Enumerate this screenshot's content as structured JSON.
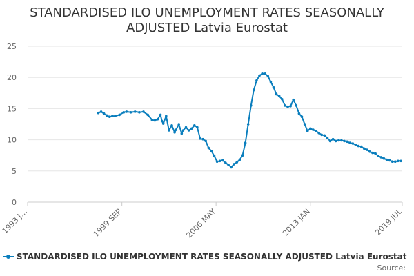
{
  "chart_data": {
    "type": "line",
    "title_lines": [
      "STANDARDISED ILO UNEMPLOYMENT RATES SEASONALLY",
      "ADJUSTED Latvia Eurostat"
    ],
    "xlabel": "",
    "ylabel": "",
    "ylim": [
      0,
      25
    ],
    "y_ticks": [
      0,
      5,
      10,
      15,
      20,
      25
    ],
    "x_range": [
      1993.0,
      2019.5
    ],
    "x_ticks": [
      {
        "x": 1993.0,
        "label": "1993 J…"
      },
      {
        "x": 1999.67,
        "label": "1999 SEP"
      },
      {
        "x": 2006.33,
        "label": "2006 MAY"
      },
      {
        "x": 2013.0,
        "label": "2013 JAN"
      },
      {
        "x": 2019.5,
        "label": "2019 JUL"
      }
    ],
    "grid": true,
    "series": [
      {
        "name": "STANDARDISED ILO UNEMPLOYMENT RATES SEASONALLY ADJUSTED Latvia Eurostat",
        "color": "#0a7ebd",
        "x": [
          1998.0,
          1998.2,
          1998.4,
          1998.6,
          1998.8,
          1999.0,
          1999.2,
          1999.5,
          1999.8,
          2000.0,
          2000.3,
          2000.6,
          2000.9,
          2001.2,
          2001.5,
          2001.8,
          2002.0,
          2002.2,
          2002.4,
          2002.5,
          2002.6,
          2002.8,
          2003.0,
          2003.2,
          2003.4,
          2003.5,
          2003.7,
          2003.9,
          2004.0,
          2004.2,
          2004.4,
          2004.6,
          2004.8,
          2005.0,
          2005.2,
          2005.4,
          2005.6,
          2005.8,
          2006.0,
          2006.2,
          2006.4,
          2006.6,
          2006.8,
          2007.0,
          2007.2,
          2007.4,
          2007.6,
          2007.8,
          2008.0,
          2008.2,
          2008.4,
          2008.6,
          2008.8,
          2009.0,
          2009.2,
          2009.4,
          2009.6,
          2009.8,
          2010.0,
          2010.2,
          2010.4,
          2010.6,
          2010.8,
          2011.0,
          2011.2,
          2011.4,
          2011.6,
          2011.8,
          2012.0,
          2012.2,
          2012.4,
          2012.6,
          2012.8,
          2013.0,
          2013.2,
          2013.4,
          2013.6,
          2013.8,
          2014.0,
          2014.2,
          2014.4,
          2014.6,
          2014.8,
          2015.0,
          2015.2,
          2015.4,
          2015.6,
          2015.8,
          2016.0,
          2016.2,
          2016.4,
          2016.6,
          2016.8,
          2017.0,
          2017.2,
          2017.4,
          2017.6,
          2017.8,
          2018.0,
          2018.2,
          2018.4,
          2018.6,
          2018.8,
          2019.0,
          2019.2,
          2019.4
        ],
        "values": [
          14.3,
          14.5,
          14.2,
          13.9,
          13.7,
          13.8,
          13.8,
          14.0,
          14.4,
          14.5,
          14.4,
          14.5,
          14.4,
          14.5,
          14.0,
          13.2,
          13.1,
          13.3,
          14.0,
          13.0,
          12.6,
          13.8,
          11.5,
          12.3,
          11.2,
          11.6,
          12.5,
          11.0,
          11.5,
          12.0,
          11.5,
          11.8,
          12.3,
          12.0,
          10.2,
          10.1,
          9.8,
          8.7,
          8.2,
          7.4,
          6.5,
          6.6,
          6.7,
          6.3,
          6.0,
          5.6,
          6.1,
          6.4,
          6.8,
          7.5,
          9.5,
          12.5,
          15.5,
          18.0,
          19.5,
          20.3,
          20.6,
          20.6,
          20.2,
          19.3,
          18.4,
          17.3,
          17.0,
          16.5,
          15.5,
          15.3,
          15.4,
          16.4,
          15.5,
          14.2,
          13.7,
          12.5,
          11.4,
          11.8,
          11.6,
          11.4,
          11.1,
          10.8,
          10.7,
          10.3,
          9.8,
          10.1,
          9.8,
          9.9,
          9.9,
          9.8,
          9.7,
          9.5,
          9.4,
          9.2,
          9.0,
          8.9,
          8.6,
          8.4,
          8.1,
          7.9,
          7.8,
          7.4,
          7.2,
          7.0,
          6.8,
          6.7,
          6.5,
          6.5,
          6.6,
          6.6
        ]
      }
    ],
    "legend_position": "bottom",
    "source_label": "Source:"
  }
}
